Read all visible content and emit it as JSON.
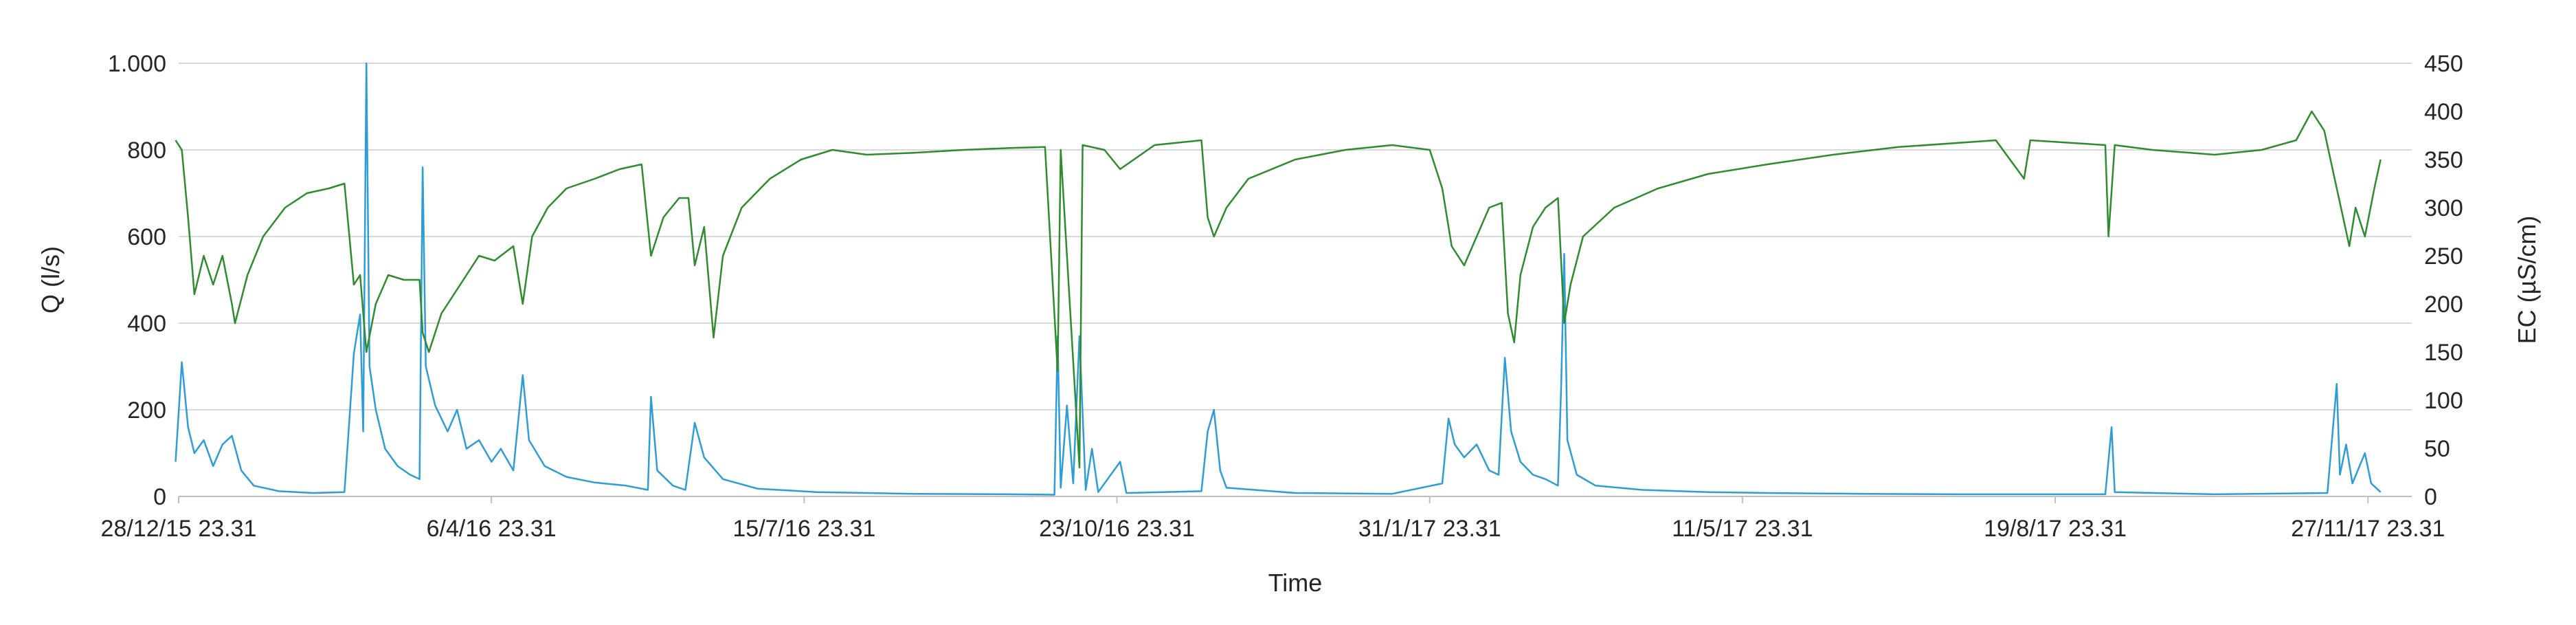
{
  "chart_data": {
    "type": "line",
    "title": "",
    "xlabel": "Time",
    "ylabel": "Q (l/s)",
    "y2label": "EC (µS/cm)",
    "xlim": [
      "2015-12-28T23:31",
      "2017-12-11T23:31"
    ],
    "ylim": [
      0,
      1000
    ],
    "y2lim": [
      0,
      450
    ],
    "grid": "horizontal",
    "legend": "none",
    "x_tick_labels": [
      {
        "date": "2015-12-28T23:31",
        "label": "28/12/15 23.31"
      },
      {
        "date": "2016-04-06T23:31",
        "label": "6/4/16 23.31"
      },
      {
        "date": "2016-07-15T23:31",
        "label": "15/7/16 23.31"
      },
      {
        "date": "2016-10-23T23:31",
        "label": "23/10/16 23.31"
      },
      {
        "date": "2017-01-31T23:31",
        "label": "31/1/17 23.31"
      },
      {
        "date": "2017-05-11T23:31",
        "label": "11/5/17 23.31"
      },
      {
        "date": "2017-08-19T23:31",
        "label": "19/8/17 23.31"
      },
      {
        "date": "2017-11-27T23:31",
        "label": "27/11/17 23.31"
      }
    ],
    "y_tick_labels": [
      "0",
      "200",
      "400",
      "600",
      "800",
      "1.000"
    ],
    "y_tick_values": [
      0,
      200,
      400,
      600,
      800,
      1000
    ],
    "y2_tick_labels": [
      "0",
      "50",
      "100",
      "150",
      "200",
      "250",
      "300",
      "350",
      "400",
      "450"
    ],
    "y2_tick_values": [
      0,
      50,
      100,
      150,
      200,
      250,
      300,
      350,
      400,
      450
    ],
    "series": [
      {
        "axis": "left",
        "color": "#2e9cd6",
        "points": [
          [
            "2015-12-28",
            80
          ],
          [
            "2015-12-30",
            310
          ],
          [
            "2016-01-01",
            160
          ],
          [
            "2016-01-03",
            100
          ],
          [
            "2016-01-06",
            130
          ],
          [
            "2016-01-09",
            70
          ],
          [
            "2016-01-12",
            120
          ],
          [
            "2016-01-15",
            140
          ],
          [
            "2016-01-18",
            60
          ],
          [
            "2016-01-22",
            25
          ],
          [
            "2016-01-30",
            12
          ],
          [
            "2016-02-10",
            8
          ],
          [
            "2016-02-20",
            10
          ],
          [
            "2016-02-23",
            330
          ],
          [
            "2016-02-25",
            420
          ],
          [
            "2016-02-26",
            150
          ],
          [
            "2016-02-27",
            1000
          ],
          [
            "2016-02-28",
            300
          ],
          [
            "2016-03-01",
            200
          ],
          [
            "2016-03-04",
            110
          ],
          [
            "2016-03-08",
            70
          ],
          [
            "2016-03-12",
            50
          ],
          [
            "2016-03-15",
            40
          ],
          [
            "2016-03-16",
            760
          ],
          [
            "2016-03-17",
            300
          ],
          [
            "2016-03-20",
            210
          ],
          [
            "2016-03-24",
            150
          ],
          [
            "2016-03-27",
            200
          ],
          [
            "2016-03-30",
            110
          ],
          [
            "2016-04-03",
            130
          ],
          [
            "2016-04-07",
            80
          ],
          [
            "2016-04-10",
            110
          ],
          [
            "2016-04-14",
            60
          ],
          [
            "2016-04-17",
            280
          ],
          [
            "2016-04-19",
            130
          ],
          [
            "2016-04-24",
            70
          ],
          [
            "2016-05-01",
            45
          ],
          [
            "2016-05-10",
            32
          ],
          [
            "2016-05-20",
            25
          ],
          [
            "2016-05-27",
            15
          ],
          [
            "2016-05-28",
            230
          ],
          [
            "2016-05-30",
            60
          ],
          [
            "2016-06-04",
            25
          ],
          [
            "2016-06-08",
            15
          ],
          [
            "2016-06-11",
            170
          ],
          [
            "2016-06-14",
            90
          ],
          [
            "2016-06-20",
            40
          ],
          [
            "2016-07-01",
            18
          ],
          [
            "2016-07-20",
            10
          ],
          [
            "2016-08-20",
            6
          ],
          [
            "2016-09-20",
            5
          ],
          [
            "2016-10-04",
            4
          ],
          [
            "2016-10-05",
            370
          ],
          [
            "2016-10-06",
            20
          ],
          [
            "2016-10-08",
            210
          ],
          [
            "2016-10-10",
            30
          ],
          [
            "2016-10-12",
            370
          ],
          [
            "2016-10-14",
            15
          ],
          [
            "2016-10-16",
            110
          ],
          [
            "2016-10-18",
            10
          ],
          [
            "2016-10-25",
            80
          ],
          [
            "2016-10-27",
            8
          ],
          [
            "2016-11-20",
            12
          ],
          [
            "2016-11-22",
            150
          ],
          [
            "2016-11-24",
            200
          ],
          [
            "2016-11-26",
            60
          ],
          [
            "2016-11-28",
            20
          ],
          [
            "2016-12-20",
            8
          ],
          [
            "2017-01-20",
            6
          ],
          [
            "2017-02-05",
            30
          ],
          [
            "2017-02-07",
            180
          ],
          [
            "2017-02-09",
            120
          ],
          [
            "2017-02-12",
            90
          ],
          [
            "2017-02-16",
            120
          ],
          [
            "2017-02-20",
            60
          ],
          [
            "2017-02-23",
            50
          ],
          [
            "2017-02-25",
            320
          ],
          [
            "2017-02-27",
            150
          ],
          [
            "2017-03-02",
            80
          ],
          [
            "2017-03-06",
            50
          ],
          [
            "2017-03-10",
            40
          ],
          [
            "2017-03-14",
            25
          ],
          [
            "2017-03-15",
            250
          ],
          [
            "2017-03-16",
            560
          ],
          [
            "2017-03-17",
            130
          ],
          [
            "2017-03-20",
            50
          ],
          [
            "2017-03-26",
            25
          ],
          [
            "2017-04-10",
            15
          ],
          [
            "2017-05-01",
            10
          ],
          [
            "2017-05-20",
            8
          ],
          [
            "2017-06-20",
            6
          ],
          [
            "2017-07-20",
            5
          ],
          [
            "2017-08-20",
            5
          ],
          [
            "2017-09-05",
            5
          ],
          [
            "2017-09-07",
            160
          ],
          [
            "2017-09-08",
            10
          ],
          [
            "2017-10-10",
            5
          ],
          [
            "2017-11-15",
            8
          ],
          [
            "2017-11-18",
            260
          ],
          [
            "2017-11-19",
            50
          ],
          [
            "2017-11-21",
            120
          ],
          [
            "2017-11-23",
            30
          ],
          [
            "2017-11-27",
            100
          ],
          [
            "2017-11-29",
            30
          ],
          [
            "2017-12-02",
            10
          ]
        ]
      },
      {
        "axis": "right",
        "color": "#2e8b2e",
        "points": [
          [
            "2015-12-28",
            370
          ],
          [
            "2015-12-30",
            360
          ],
          [
            "2016-01-01",
            290
          ],
          [
            "2016-01-03",
            210
          ],
          [
            "2016-01-06",
            250
          ],
          [
            "2016-01-09",
            220
          ],
          [
            "2016-01-12",
            250
          ],
          [
            "2016-01-15",
            200
          ],
          [
            "2016-01-16",
            180
          ],
          [
            "2016-01-20",
            230
          ],
          [
            "2016-01-25",
            270
          ],
          [
            "2016-02-01",
            300
          ],
          [
            "2016-02-08",
            315
          ],
          [
            "2016-02-15",
            320
          ],
          [
            "2016-02-20",
            325
          ],
          [
            "2016-02-23",
            220
          ],
          [
            "2016-02-25",
            230
          ],
          [
            "2016-02-27",
            150
          ],
          [
            "2016-03-01",
            200
          ],
          [
            "2016-03-05",
            230
          ],
          [
            "2016-03-10",
            225
          ],
          [
            "2016-03-15",
            225
          ],
          [
            "2016-03-16",
            170
          ],
          [
            "2016-03-18",
            150
          ],
          [
            "2016-03-22",
            190
          ],
          [
            "2016-03-28",
            220
          ],
          [
            "2016-04-03",
            250
          ],
          [
            "2016-04-08",
            245
          ],
          [
            "2016-04-14",
            260
          ],
          [
            "2016-04-17",
            200
          ],
          [
            "2016-04-20",
            270
          ],
          [
            "2016-04-25",
            300
          ],
          [
            "2016-05-01",
            320
          ],
          [
            "2016-05-10",
            330
          ],
          [
            "2016-05-18",
            340
          ],
          [
            "2016-05-25",
            345
          ],
          [
            "2016-05-28",
            250
          ],
          [
            "2016-06-01",
            290
          ],
          [
            "2016-06-06",
            310
          ],
          [
            "2016-06-09",
            310
          ],
          [
            "2016-06-11",
            240
          ],
          [
            "2016-06-14",
            280
          ],
          [
            "2016-06-17",
            165
          ],
          [
            "2016-06-20",
            250
          ],
          [
            "2016-06-26",
            300
          ],
          [
            "2016-07-05",
            330
          ],
          [
            "2016-07-15",
            350
          ],
          [
            "2016-07-25",
            360
          ],
          [
            "2016-08-05",
            355
          ],
          [
            "2016-08-20",
            357
          ],
          [
            "2016-09-05",
            360
          ],
          [
            "2016-09-20",
            362
          ],
          [
            "2016-10-01",
            363
          ],
          [
            "2016-10-05",
            130
          ],
          [
            "2016-10-06",
            360
          ],
          [
            "2016-10-12",
            30
          ],
          [
            "2016-10-13",
            365
          ],
          [
            "2016-10-20",
            360
          ],
          [
            "2016-10-25",
            340
          ],
          [
            "2016-11-05",
            365
          ],
          [
            "2016-11-20",
            370
          ],
          [
            "2016-11-22",
            290
          ],
          [
            "2016-11-24",
            270
          ],
          [
            "2016-11-28",
            300
          ],
          [
            "2016-12-05",
            330
          ],
          [
            "2016-12-20",
            350
          ],
          [
            "2017-01-05",
            360
          ],
          [
            "2017-01-20",
            365
          ],
          [
            "2017-02-01",
            360
          ],
          [
            "2017-02-05",
            320
          ],
          [
            "2017-02-08",
            260
          ],
          [
            "2017-02-12",
            240
          ],
          [
            "2017-02-16",
            270
          ],
          [
            "2017-02-20",
            300
          ],
          [
            "2017-02-24",
            305
          ],
          [
            "2017-02-26",
            190
          ],
          [
            "2017-02-28",
            160
          ],
          [
            "2017-03-02",
            230
          ],
          [
            "2017-03-06",
            280
          ],
          [
            "2017-03-10",
            300
          ],
          [
            "2017-03-14",
            310
          ],
          [
            "2017-03-16",
            180
          ],
          [
            "2017-03-18",
            220
          ],
          [
            "2017-03-22",
            270
          ],
          [
            "2017-04-01",
            300
          ],
          [
            "2017-04-15",
            320
          ],
          [
            "2017-05-01",
            335
          ],
          [
            "2017-05-20",
            345
          ],
          [
            "2017-06-10",
            355
          ],
          [
            "2017-07-01",
            363
          ],
          [
            "2017-08-01",
            370
          ],
          [
            "2017-08-10",
            330
          ],
          [
            "2017-08-12",
            370
          ],
          [
            "2017-09-05",
            365
          ],
          [
            "2017-09-06",
            270
          ],
          [
            "2017-09-08",
            365
          ],
          [
            "2017-09-20",
            360
          ],
          [
            "2017-10-10",
            355
          ],
          [
            "2017-10-25",
            360
          ],
          [
            "2017-11-05",
            370
          ],
          [
            "2017-11-10",
            400
          ],
          [
            "2017-11-14",
            380
          ],
          [
            "2017-11-18",
            320
          ],
          [
            "2017-11-20",
            290
          ],
          [
            "2017-11-22",
            260
          ],
          [
            "2017-11-24",
            300
          ],
          [
            "2017-11-27",
            270
          ],
          [
            "2017-11-30",
            320
          ],
          [
            "2017-12-02",
            350
          ]
        ]
      }
    ]
  }
}
